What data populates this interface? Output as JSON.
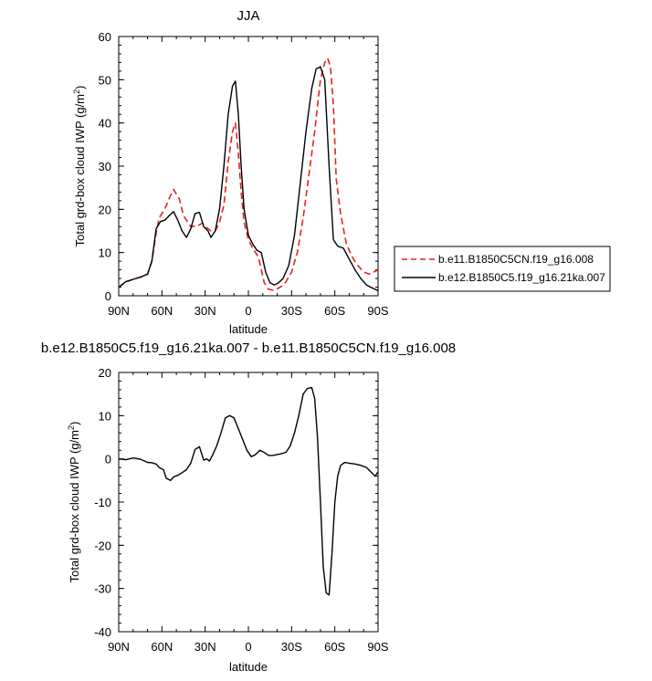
{
  "chart_data": [
    {
      "type": "line",
      "title": "JJA",
      "xlabel": "latitude",
      "ylabel_main": "Total grd-box cloud IWP (g/m",
      "ylabel_sup": "2",
      "ylabel_close": ")",
      "xlim": [
        90,
        -90
      ],
      "ylim": [
        0,
        60
      ],
      "x_ticks": [
        90,
        60,
        30,
        0,
        -30,
        -60,
        -90
      ],
      "x_tick_labels": [
        "90N",
        "60N",
        "30N",
        "0",
        "30S",
        "60S",
        "90S"
      ],
      "y_ticks": [
        0,
        10,
        20,
        30,
        40,
        50,
        60
      ],
      "y_tick_labels": [
        "0",
        "10",
        "20",
        "30",
        "40",
        "50",
        "60"
      ],
      "legend_position": "right",
      "series": [
        {
          "name": "b.e11.B1850C5CN.f19_g16.008",
          "color": "#e8221e",
          "dash": "dashed",
          "x": [
            90,
            85,
            80,
            75,
            70,
            67,
            64,
            62,
            58,
            55,
            52,
            48,
            45,
            40,
            35,
            32,
            29,
            26,
            23,
            20,
            17,
            14,
            11,
            9,
            7,
            5,
            3,
            0,
            -3,
            -7,
            -11,
            -14,
            -17,
            -20,
            -23,
            -26,
            -30,
            -34,
            -38,
            -42,
            -46,
            -50,
            -53,
            -55,
            -57,
            -59,
            -61,
            -64,
            -68,
            -72,
            -76,
            -80,
            -84,
            -87,
            -90
          ],
          "y": [
            2.0,
            3.2,
            3.8,
            4.3,
            5.0,
            8.0,
            14.5,
            18.0,
            20.0,
            22.5,
            24.6,
            22.5,
            18.5,
            16.0,
            16.2,
            16.8,
            15.8,
            15.0,
            15.0,
            17.0,
            21.0,
            31.0,
            38.0,
            40.0,
            33.0,
            24.0,
            17.0,
            13.0,
            11.0,
            9.0,
            3.0,
            1.5,
            1.3,
            1.6,
            2.2,
            3.2,
            5.5,
            10.0,
            18.0,
            28.0,
            38.0,
            50.0,
            54.0,
            55.0,
            53.0,
            44.0,
            27.0,
            19.0,
            12.0,
            9.0,
            7.0,
            5.5,
            5.0,
            5.5,
            6.0
          ]
        },
        {
          "name": "b.e12.B1850C5.f19_g16.21ka.007",
          "color": "#000000",
          "dash": "solid",
          "x": [
            90,
            85,
            80,
            75,
            70,
            67,
            64,
            61,
            58,
            55,
            52,
            49,
            46,
            43,
            40,
            37,
            34,
            31,
            28,
            26,
            23,
            20,
            17,
            14,
            11,
            9,
            7,
            5,
            3,
            0,
            -3,
            -6,
            -9,
            -12,
            -15,
            -18,
            -21,
            -24,
            -28,
            -32,
            -36,
            -40,
            -44,
            -47,
            -50,
            -53,
            -56,
            -59,
            -62,
            -66,
            -70,
            -74,
            -78,
            -82,
            -86,
            -90
          ],
          "y": [
            2.0,
            3.3,
            3.8,
            4.3,
            5.0,
            8.0,
            15.5,
            17.2,
            17.5,
            18.5,
            19.5,
            17.5,
            15.0,
            13.5,
            15.5,
            19.0,
            19.3,
            16.0,
            15.0,
            13.5,
            15.0,
            20.0,
            30.0,
            42.0,
            48.5,
            49.7,
            42.0,
            30.0,
            20.0,
            14.0,
            12.0,
            10.5,
            10.0,
            5.5,
            3.0,
            2.5,
            3.0,
            4.0,
            7.0,
            14.0,
            26.0,
            38.0,
            48.0,
            52.5,
            53.0,
            50.0,
            30.0,
            13.0,
            11.5,
            11.0,
            8.5,
            6.0,
            4.0,
            2.5,
            1.8,
            1.2
          ]
        }
      ]
    },
    {
      "type": "line",
      "title": "b.e12.B1850C5.f19_g16.21ka.007 - b.e11.B1850C5CN.f19_g16.008",
      "xlabel": "latitude",
      "ylabel_main": "Total grd-box cloud IWP (g/m",
      "ylabel_sup": "2",
      "ylabel_close": ")",
      "xlim": [
        90,
        -90
      ],
      "ylim": [
        -40,
        20
      ],
      "x_ticks": [
        90,
        60,
        30,
        0,
        -30,
        -60,
        -90
      ],
      "x_tick_labels": [
        "90N",
        "60N",
        "30N",
        "0",
        "30S",
        "60S",
        "90S"
      ],
      "y_ticks": [
        -40,
        -30,
        -20,
        -10,
        0,
        10,
        20
      ],
      "y_tick_labels": [
        "-40",
        "-30",
        "-20",
        "-10",
        "0",
        "10",
        "20"
      ],
      "series": [
        {
          "color": "#000000",
          "dash": "solid",
          "x": [
            90,
            85,
            80,
            75,
            72,
            70,
            67,
            64,
            62,
            59,
            57,
            54,
            52,
            49,
            46,
            43,
            40,
            37,
            34,
            31,
            29,
            27,
            25,
            22,
            19,
            16,
            13,
            10,
            7,
            4,
            1,
            -2,
            -5,
            -8,
            -11,
            -14,
            -17,
            -20,
            -23,
            -26,
            -29,
            -32,
            -35,
            -38,
            -41,
            -44,
            -46,
            -48,
            -50,
            -52,
            -54,
            -56,
            -58,
            -60,
            -62,
            -64,
            -67,
            -70,
            -74,
            -78,
            -82,
            -85,
            -88,
            -90
          ],
          "y": [
            0.0,
            -0.2,
            0.2,
            -0.1,
            -0.5,
            -0.8,
            -0.9,
            -1.2,
            -2.0,
            -2.5,
            -4.5,
            -5.0,
            -4.2,
            -3.8,
            -3.2,
            -2.5,
            -1.0,
            2.2,
            2.8,
            -0.3,
            0.0,
            -0.5,
            0.8,
            3.0,
            6.0,
            9.5,
            10.0,
            9.5,
            7.0,
            4.5,
            2.0,
            0.5,
            1.0,
            2.0,
            1.5,
            0.8,
            0.8,
            1.0,
            1.2,
            1.5,
            3.0,
            6.0,
            10.0,
            15.0,
            16.3,
            16.5,
            14.0,
            5.0,
            -10.0,
            -25.0,
            -31.0,
            -31.5,
            -22.0,
            -10.0,
            -4.0,
            -1.5,
            -0.8,
            -1.0,
            -1.2,
            -1.5,
            -2.0,
            -3.0,
            -4.0,
            -3.0
          ]
        }
      ]
    }
  ]
}
